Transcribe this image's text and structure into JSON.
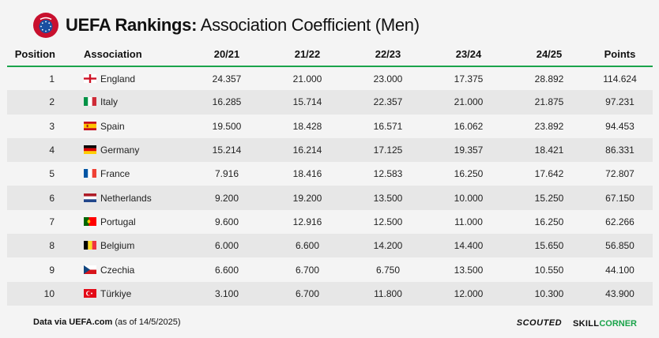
{
  "header": {
    "logo_text": "UEFA",
    "title_bold": "UEFA Rankings:",
    "title_rest": " Association Coefficient (Men)"
  },
  "table": {
    "columns": [
      "Position",
      "Association",
      "20/21",
      "21/22",
      "22/23",
      "23/24",
      "24/25",
      "Points"
    ],
    "rows": [
      {
        "position": "1",
        "association": "England",
        "flag": "england-flag",
        "s2021": "24.357",
        "s2122": "21.000",
        "s2223": "23.000",
        "s2324": "17.375",
        "s2425": "28.892",
        "points": "114.624"
      },
      {
        "position": "2",
        "association": "Italy",
        "flag": "italy-flag",
        "s2021": "16.285",
        "s2122": "15.714",
        "s2223": "22.357",
        "s2324": "21.000",
        "s2425": "21.875",
        "points": "97.231"
      },
      {
        "position": "3",
        "association": "Spain",
        "flag": "spain-flag",
        "s2021": "19.500",
        "s2122": "18.428",
        "s2223": "16.571",
        "s2324": "16.062",
        "s2425": "23.892",
        "points": "94.453"
      },
      {
        "position": "4",
        "association": "Germany",
        "flag": "germany-flag",
        "s2021": "15.214",
        "s2122": "16.214",
        "s2223": "17.125",
        "s2324": "19.357",
        "s2425": "18.421",
        "points": "86.331"
      },
      {
        "position": "5",
        "association": "France",
        "flag": "france-flag",
        "s2021": "7.916",
        "s2122": "18.416",
        "s2223": "12.583",
        "s2324": "16.250",
        "s2425": "17.642",
        "points": "72.807"
      },
      {
        "position": "6",
        "association": "Netherlands",
        "flag": "netherlands-flag",
        "s2021": "9.200",
        "s2122": "19.200",
        "s2223": "13.500",
        "s2324": "10.000",
        "s2425": "15.250",
        "points": "67.150"
      },
      {
        "position": "7",
        "association": "Portugal",
        "flag": "portugal-flag",
        "s2021": "9.600",
        "s2122": "12.916",
        "s2223": "12.500",
        "s2324": "11.000",
        "s2425": "16.250",
        "points": "62.266"
      },
      {
        "position": "8",
        "association": "Belgium",
        "flag": "belgium-flag",
        "s2021": "6.000",
        "s2122": "6.600",
        "s2223": "14.200",
        "s2324": "14.400",
        "s2425": "15.650",
        "points": "56.850"
      },
      {
        "position": "9",
        "association": "Czechia",
        "flag": "czechia-flag",
        "s2021": "6.600",
        "s2122": "6.700",
        "s2223": "6.750",
        "s2324": "13.500",
        "s2425": "10.550",
        "points": "44.100"
      },
      {
        "position": "10",
        "association": "Türkiye",
        "flag": "turkiye-flag",
        "s2021": "3.100",
        "s2122": "6.700",
        "s2223": "11.800",
        "s2324": "12.000",
        "s2425": "10.300",
        "points": "43.900"
      }
    ]
  },
  "footer": {
    "source_bold": "Data via UEFA.com",
    "source_rest": " (as of 14/5/2025)",
    "brand1": "SCOUTED",
    "brand2_a": "SKILL",
    "brand2_b": "CORNER"
  },
  "colors": {
    "accent_green": "#1aa34a",
    "uefa_red": "#c8102e",
    "stripe": "#e7e7e7",
    "background": "#f4f4f4"
  }
}
